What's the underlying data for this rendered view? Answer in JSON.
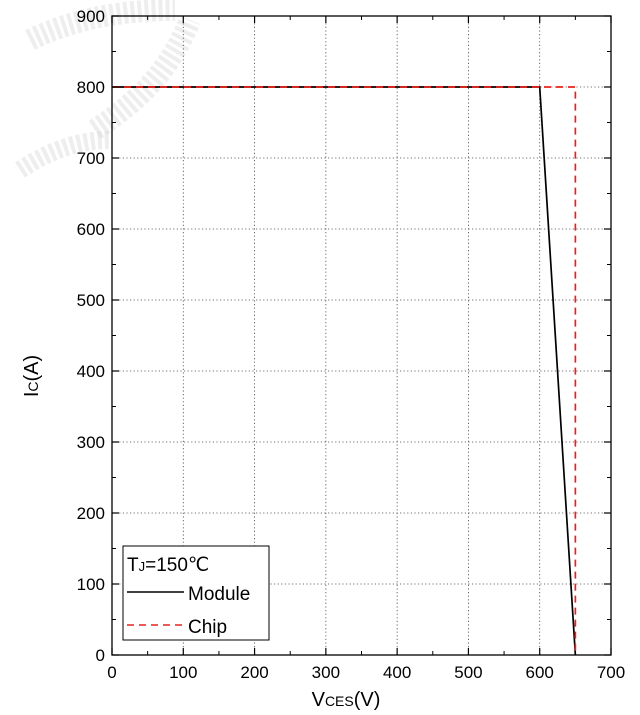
{
  "chart_data": {
    "type": "line",
    "title": "",
    "xlabel": {
      "main": "V",
      "sub": "CES",
      "unit": "(V)"
    },
    "ylabel": {
      "main": "I",
      "sub": "C",
      "unit": "(A)"
    },
    "xlim": [
      0,
      700
    ],
    "ylim": [
      0,
      900
    ],
    "xticks": [
      0,
      100,
      200,
      300,
      400,
      500,
      600,
      700
    ],
    "yticks": [
      0,
      100,
      200,
      300,
      400,
      500,
      600,
      700,
      800,
      900
    ],
    "x_minor_step": 50,
    "y_minor_step": 50,
    "grid": true,
    "legend_position": "bottom-left",
    "annotation": {
      "main": "T",
      "sub": "J",
      "rest": "=150℃"
    },
    "series": [
      {
        "name": "Module",
        "color": "#000000",
        "style": "solid",
        "points": [
          [
            0,
            800
          ],
          [
            600,
            800
          ],
          [
            650,
            0
          ]
        ]
      },
      {
        "name": "Chip",
        "color": "#e8231f",
        "style": "dashed",
        "points": [
          [
            0,
            800
          ],
          [
            650,
            800
          ],
          [
            650,
            0
          ]
        ]
      }
    ]
  }
}
